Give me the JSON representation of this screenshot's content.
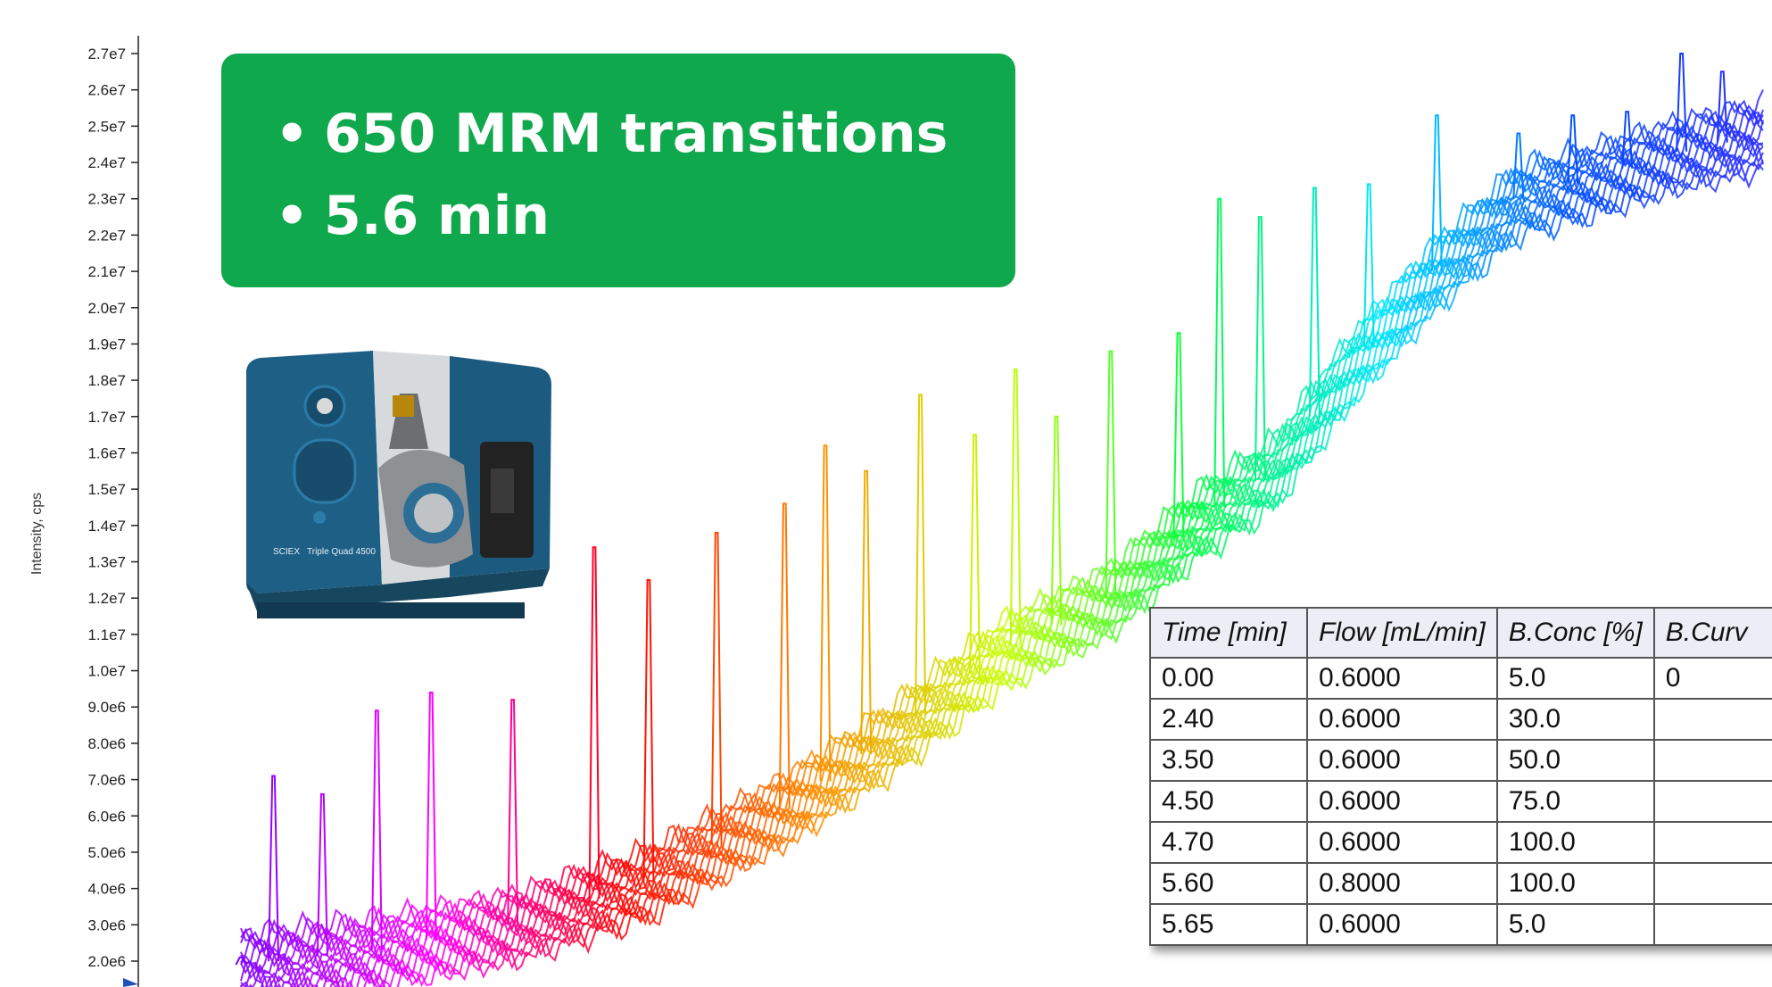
{
  "chart_data": {
    "type": "line",
    "title": "",
    "xlabel": "",
    "ylabel": "Intensity, cps",
    "y_ticks": [
      "2.0e6",
      "3.0e6",
      "4.0e6",
      "5.0e6",
      "6.0e6",
      "7.0e6",
      "8.0e6",
      "9.0e6",
      "1.0e7",
      "1.1e7",
      "1.2e7",
      "1.3e7",
      "1.4e7",
      "1.5e7",
      "1.6e7",
      "1.7e7",
      "1.8e7",
      "1.9e7",
      "2.0e7",
      "2.1e7",
      "2.2e7",
      "2.3e7",
      "2.4e7",
      "2.5e7",
      "2.6e7",
      "2.7e7"
    ],
    "ylim": [
      2000000,
      27000000
    ],
    "xlim": [
      0,
      5.6
    ],
    "grid": false,
    "legend": "none",
    "color_scale": [
      "#7f00ff",
      "#ff00ff",
      "#ff0000",
      "#ff8c00",
      "#c8ff00",
      "#00ff40",
      "#00e5ff",
      "#0050ff",
      "#2a2aff"
    ],
    "baseline": {
      "x": [
        0.0,
        0.5,
        1.0,
        1.5,
        2.0,
        2.4,
        2.8,
        3.2,
        3.5,
        3.8,
        4.1,
        4.4,
        4.7,
        5.0,
        5.3,
        5.6
      ],
      "y": [
        1900000,
        2300000,
        3000000,
        4200000,
        6200000,
        8200000,
        10500000,
        12000000,
        14000000,
        15500000,
        18500000,
        21000000,
        23000000,
        23600000,
        24300000,
        24800000
      ]
    },
    "peaks": {
      "x": [
        0.0,
        0.12,
        0.3,
        0.5,
        0.7,
        1.0,
        1.3,
        1.5,
        1.75,
        2.0,
        2.15,
        2.3,
        2.5,
        2.7,
        2.85,
        3.0,
        3.2,
        3.45,
        3.6,
        3.75,
        3.95,
        4.15,
        4.4,
        4.7,
        4.9,
        5.1,
        5.3,
        5.45
      ],
      "y": [
        2100000,
        7100000,
        6600000,
        8900000,
        9400000,
        9200000,
        13400000,
        12500000,
        13800000,
        14600000,
        16200000,
        15500000,
        17600000,
        16500000,
        18300000,
        17000000,
        18800000,
        19300000,
        23000000,
        22500000,
        23300000,
        23400000,
        25300000,
        24800000,
        25300000,
        25400000,
        27000000,
        26500000
      ]
    }
  },
  "callout": {
    "items": [
      "650 MRM transitions",
      "5.6 min"
    ]
  },
  "instrument": {
    "brand": "SCIEX",
    "model": "Triple Quad 4500"
  },
  "gradient_table": {
    "headers": [
      "Time [min]",
      "Flow [mL/min]",
      "B.Conc [%]",
      "B.Curv"
    ],
    "rows": [
      [
        "0.00",
        "0.6000",
        "5.0",
        "0"
      ],
      [
        "2.40",
        "0.6000",
        "30.0",
        ""
      ],
      [
        "3.50",
        "0.6000",
        "50.0",
        ""
      ],
      [
        "4.50",
        "0.6000",
        "75.0",
        ""
      ],
      [
        "4.70",
        "0.6000",
        "100.0",
        ""
      ],
      [
        "5.60",
        "0.8000",
        "100.0",
        ""
      ],
      [
        "5.65",
        "0.6000",
        "5.0",
        ""
      ]
    ]
  }
}
